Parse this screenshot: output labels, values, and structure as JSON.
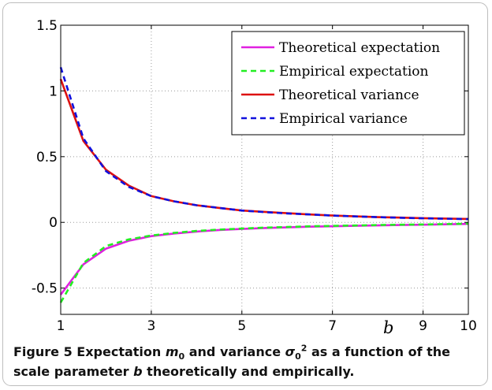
{
  "chart_data": {
    "type": "line",
    "xlabel": "b",
    "ylabel": "",
    "title": "",
    "xlim": [
      1,
      10
    ],
    "ylim": [
      -0.7,
      1.5
    ],
    "xticks": [
      1,
      3,
      5,
      7,
      9,
      10
    ],
    "xtick_labels": [
      "1",
      "3",
      "5",
      "7",
      "9",
      "10"
    ],
    "yticks": [
      -0.5,
      0,
      0.5,
      1,
      1.5
    ],
    "ytick_labels": [
      "-0.5",
      "0",
      "0.5",
      "1",
      "1.5"
    ],
    "grid": true,
    "legend_position": "top-right",
    "x": [
      1,
      1.5,
      2,
      2.5,
      3,
      3.5,
      4,
      4.5,
      5,
      5.5,
      6,
      6.5,
      7,
      7.5,
      8,
      8.5,
      9,
      9.5,
      10
    ],
    "series": [
      {
        "name": "Theoretical expectation",
        "color": "#e020e0",
        "style": "solid",
        "values": [
          -0.55,
          -0.32,
          -0.2,
          -0.14,
          -0.105,
          -0.085,
          -0.07,
          -0.058,
          -0.05,
          -0.043,
          -0.038,
          -0.033,
          -0.03,
          -0.026,
          -0.023,
          -0.02,
          -0.018,
          -0.015,
          -0.012
        ]
      },
      {
        "name": "Empirical expectation",
        "color": "#22ee22",
        "style": "dashed",
        "values": [
          -0.61,
          -0.31,
          -0.18,
          -0.13,
          -0.1,
          -0.08,
          -0.065,
          -0.055,
          -0.047,
          -0.04,
          -0.035,
          -0.03,
          -0.027,
          -0.024,
          -0.02,
          -0.018,
          -0.016,
          -0.013,
          -0.01
        ]
      },
      {
        "name": "Theoretical variance",
        "color": "#dd1111",
        "style": "solid",
        "values": [
          1.09,
          0.62,
          0.4,
          0.28,
          0.2,
          0.16,
          0.13,
          0.11,
          0.09,
          0.08,
          0.07,
          0.06,
          0.052,
          0.046,
          0.04,
          0.036,
          0.032,
          0.029,
          0.026
        ]
      },
      {
        "name": "Empirical variance",
        "color": "#1111dd",
        "style": "dashed",
        "values": [
          1.18,
          0.64,
          0.39,
          0.27,
          0.2,
          0.16,
          0.13,
          0.11,
          0.09,
          0.078,
          0.068,
          0.06,
          0.052,
          0.045,
          0.04,
          0.035,
          0.031,
          0.028,
          0.025
        ]
      }
    ]
  },
  "caption": {
    "label": "Figure 5",
    "text_1": " Expectation ",
    "m_symbol": "m",
    "m_sub": "0",
    "text_2": " and variance ",
    "sigma_symbol": "σ",
    "sigma_sub": "0",
    "sigma_sup": "2",
    "text_3": " as a function of the scale parameter ",
    "b_symbol": "b",
    "text_4": " theoretically and empirically."
  }
}
